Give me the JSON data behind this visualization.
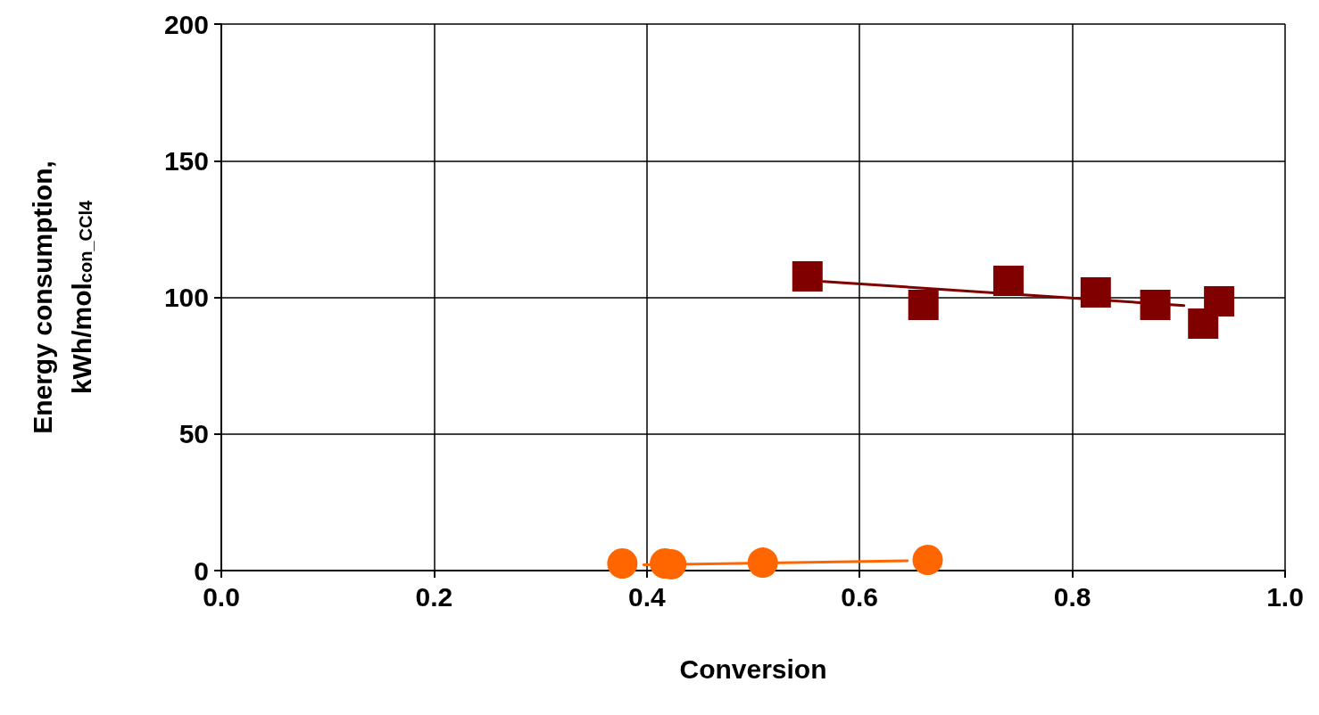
{
  "chart_data": {
    "type": "scatter",
    "xlabel": "Conversion",
    "ylabel": "Energy consumption,\nkWh/mol$_{con_CCl4}$",
    "xlim": [
      0,
      1
    ],
    "xticks": [
      {
        "value": 0,
        "label": "0.0"
      },
      {
        "value": 0.2,
        "label": "0.2"
      },
      {
        "value": 0.4,
        "label": "0.4"
      },
      {
        "value": 0.6,
        "label": "0.6"
      },
      {
        "value": 0.8,
        "label": "0.8"
      },
      {
        "value": 1,
        "label": "1.0"
      }
    ],
    "ylim": [
      0,
      200
    ],
    "yticks": [
      0,
      50,
      100,
      150,
      200
    ],
    "grid": true,
    "series": [
      {
        "marker": "square",
        "color": "#800000",
        "x": [
          0.551,
          0.66,
          0.74,
          0.822,
          0.878,
          0.923,
          0.938
        ],
        "values": [
          107.7,
          97.2,
          106,
          101.8,
          97.2,
          90.4,
          98.5
        ]
      },
      {
        "type": "line",
        "marker": "none",
        "color": "#800000",
        "x": [
          0.566,
          0.905
        ],
        "values": [
          105.8,
          97
        ]
      },
      {
        "marker": "circle",
        "color": "#ff6600",
        "x": [
          0.377,
          0.417,
          0.423,
          0.509,
          0.664
        ],
        "values": [
          2.6,
          2.6,
          2.3,
          2.9,
          3.9
        ]
      },
      {
        "type": "line",
        "marker": "none",
        "color": "#ff6600",
        "x": [
          0.397,
          0.645
        ],
        "values": [
          2.1,
          3.6
        ]
      }
    ]
  }
}
